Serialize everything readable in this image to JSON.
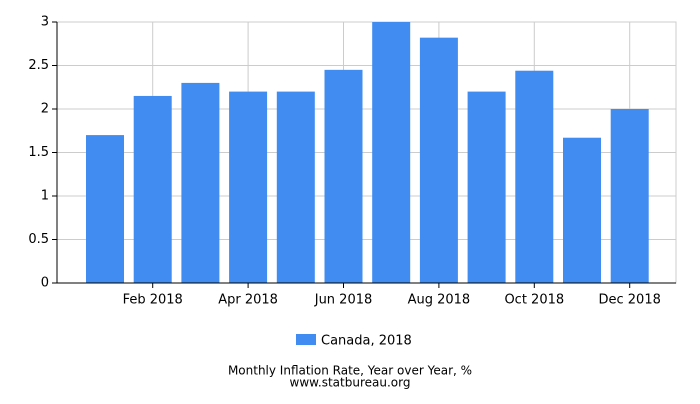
{
  "chart_data": {
    "type": "bar",
    "categories": [
      null,
      "Feb 2018",
      null,
      "Apr 2018",
      null,
      "Jun 2018",
      null,
      "Aug 2018",
      null,
      "Oct 2018",
      null,
      "Dec 2018"
    ],
    "series": [
      {
        "name": "Canada, 2018",
        "color": "#418cf0",
        "values": [
          1.7,
          2.15,
          2.3,
          2.2,
          2.2,
          2.45,
          3.0,
          2.82,
          2.2,
          2.44,
          1.67,
          2.0
        ]
      }
    ],
    "ylim": [
      0,
      3
    ],
    "yticks": [
      0,
      0.5,
      1,
      1.5,
      2,
      2.5,
      3
    ],
    "grid": true,
    "caption": "Monthly Inflation Rate, Year over Year, %",
    "source": "www.statbureau.org"
  }
}
